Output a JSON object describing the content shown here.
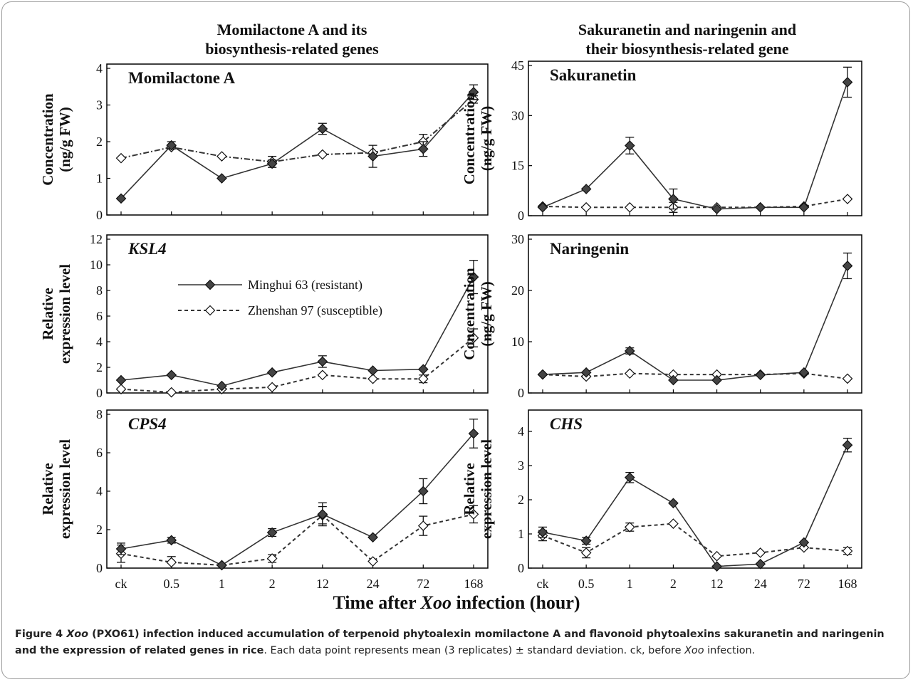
{
  "column_titles": [
    "Momilactone A and its\nbiosynthesis-related genes",
    "Sakuranetin and naringenin and\ntheir biosynthesis-related gene"
  ],
  "x_axis_label_prefix": "Time after ",
  "x_axis_label_italic": "Xoo",
  "x_axis_label_suffix": " infection (hour)",
  "caption": {
    "lead_bold_1": "Figure 4 ",
    "lead_italic": "Xoo",
    "lead_bold_2": " (PXO61) infection induced accumulation of terpenoid phytoalexin momilactone A and flavonoid phytoalexins sakuranetin and naringenin and the expression of related genes in rice",
    "rest": ". Each data point represents mean (3 replicates) ± standard deviation. ck, before ",
    "rest_italic": "Xoo",
    "rest_end": " infection."
  },
  "colors": {
    "series": "#333333",
    "marker": "#444444",
    "axis": "#000000"
  },
  "chart_data": [
    {
      "type": "line",
      "title": "Momilactone A",
      "title_italic": false,
      "ylabel": "Concentration\n(ng/g FW)",
      "categories": [
        "ck",
        "0.5",
        "1",
        "2",
        "12",
        "24",
        "72",
        "168"
      ],
      "yticks": [
        0,
        1,
        2,
        3,
        4
      ],
      "ylim": [
        0,
        4
      ],
      "xtick_labels": false,
      "series": [
        {
          "name": "Minghui 63 (resistant)",
          "values": [
            0.45,
            1.9,
            1.0,
            1.4,
            2.35,
            1.6,
            1.8,
            3.35
          ],
          "err": [
            0,
            0.1,
            0,
            0.1,
            0.15,
            0.3,
            0.2,
            0.2
          ],
          "style": "solid",
          "filled": true
        },
        {
          "name": "Zhenshan 97 (susceptible)",
          "values": [
            1.55,
            1.85,
            1.6,
            1.45,
            1.65,
            1.7,
            2.0,
            3.15
          ],
          "err": [
            0,
            0,
            0,
            0.15,
            0,
            0,
            0.2,
            0.1
          ],
          "style": "dashdot",
          "filled": false
        }
      ]
    },
    {
      "type": "line",
      "title": "Sakuranetin",
      "title_italic": false,
      "ylabel": "Concentration\n(ng/g FW)",
      "categories": [
        "ck",
        "0.5",
        "1",
        "2",
        "12",
        "24",
        "72",
        "168"
      ],
      "yticks": [
        0,
        15,
        30,
        45
      ],
      "ylim": [
        0,
        45
      ],
      "xtick_labels": false,
      "series": [
        {
          "name": "Minghui 63 (resistant)",
          "values": [
            2.5,
            8,
            21,
            5,
            2,
            2.5,
            2.5,
            40
          ],
          "err": [
            0,
            0,
            2.5,
            3,
            0,
            0,
            0,
            4.5
          ],
          "style": "solid",
          "filled": true
        },
        {
          "name": "Zhenshan 97 (susceptible)",
          "values": [
            2.8,
            2.5,
            2.5,
            2.5,
            2.5,
            2.5,
            2.8,
            5
          ],
          "err": [
            0,
            0,
            0,
            1.5,
            0,
            0,
            0,
            0
          ],
          "style": "dashed",
          "filled": false
        }
      ]
    },
    {
      "type": "line",
      "title": "KSL4",
      "title_italic": true,
      "ylabel": "Relative\nexpression level",
      "categories": [
        "ck",
        "0.5",
        "1",
        "2",
        "12",
        "24",
        "72",
        "168"
      ],
      "yticks": [
        0,
        2,
        4,
        6,
        8,
        10,
        12
      ],
      "ylim": [
        0,
        12
      ],
      "xtick_labels": false,
      "series": [
        {
          "name": "Minghui 63 (resistant)",
          "values": [
            1.0,
            1.4,
            0.55,
            1.6,
            2.45,
            1.75,
            1.85,
            9.05
          ],
          "err": [
            0,
            0,
            0,
            0,
            0.45,
            0,
            0,
            1.3
          ],
          "style": "solid",
          "filled": true
        },
        {
          "name": "Zhenshan 97 (susceptible)",
          "values": [
            0.3,
            0.05,
            0.3,
            0.45,
            1.4,
            1.1,
            1.1,
            4.3
          ],
          "err": [
            0,
            0,
            0,
            0,
            0,
            0,
            0.3,
            0.7
          ],
          "style": "dashed",
          "filled": false
        }
      ],
      "legend": [
        {
          "label": "Minghui 63 (resistant)",
          "style": "solid",
          "filled": true
        },
        {
          "label": "Zhenshan 97 (susceptible)",
          "style": "dashed",
          "filled": false
        }
      ]
    },
    {
      "type": "line",
      "title": "Naringenin",
      "title_italic": false,
      "ylabel": "Concentration\n(ng/g FW)",
      "categories": [
        "ck",
        "0.5",
        "1",
        "2",
        "12",
        "24",
        "72",
        "168"
      ],
      "yticks": [
        0,
        10,
        20,
        30
      ],
      "ylim": [
        0,
        30
      ],
      "xtick_labels": false,
      "series": [
        {
          "name": "Minghui 63 (resistant)",
          "values": [
            3.6,
            4.0,
            8.2,
            2.5,
            2.5,
            3.5,
            4.0,
            24.8
          ],
          "err": [
            0,
            0,
            0.6,
            0,
            0,
            0,
            0,
            2.5
          ],
          "style": "solid",
          "filled": true
        },
        {
          "name": "Zhenshan 97 (susceptible)",
          "values": [
            3.6,
            3.2,
            3.8,
            3.6,
            3.6,
            3.6,
            3.8,
            2.8
          ],
          "err": [
            0,
            0,
            0,
            0,
            0,
            0,
            0,
            0
          ],
          "style": "dashed",
          "filled": false
        }
      ]
    },
    {
      "type": "line",
      "title": "CPS4",
      "title_italic": true,
      "ylabel": "Relative\nexpression level",
      "categories": [
        "ck",
        "0.5",
        "1",
        "2",
        "12",
        "24",
        "72",
        "168"
      ],
      "yticks": [
        0,
        2,
        4,
        6,
        8
      ],
      "ylim": [
        0,
        8
      ],
      "xtick_labels": true,
      "series": [
        {
          "name": "Minghui 63 (resistant)",
          "values": [
            1.0,
            1.45,
            0.15,
            1.85,
            2.8,
            1.6,
            4.0,
            7.0
          ],
          "err": [
            0.3,
            0.15,
            0,
            0.2,
            0.6,
            0,
            0.65,
            0.75
          ],
          "style": "solid",
          "filled": true
        },
        {
          "name": "Zhenshan 97 (susceptible)",
          "values": [
            0.75,
            0.3,
            0.15,
            0.5,
            2.75,
            0.35,
            2.2,
            2.8
          ],
          "err": [
            0.45,
            0.3,
            0,
            0.2,
            0.45,
            0,
            0.5,
            0.45
          ],
          "style": "dashed",
          "filled": false
        }
      ]
    },
    {
      "type": "line",
      "title": "CHS",
      "title_italic": true,
      "ylabel": "Relative\nexpression level",
      "categories": [
        "ck",
        "0.5",
        "1",
        "2",
        "12",
        "24",
        "72",
        "168"
      ],
      "yticks": [
        0,
        1,
        2,
        3,
        4
      ],
      "ylim": [
        0,
        4.5
      ],
      "xtick_labels": true,
      "series": [
        {
          "name": "Minghui 63 (resistant)",
          "values": [
            1.05,
            0.8,
            2.65,
            1.9,
            0.05,
            0.12,
            0.75,
            3.6
          ],
          "err": [
            0.15,
            0.1,
            0.15,
            0,
            0,
            0,
            0,
            0.2
          ],
          "style": "solid",
          "filled": true
        },
        {
          "name": "Zhenshan 97 (susceptible)",
          "values": [
            0.95,
            0.45,
            1.2,
            1.3,
            0.35,
            0.45,
            0.6,
            0.5
          ],
          "err": [
            0.15,
            0.15,
            0.12,
            0,
            0,
            0,
            0,
            0.1
          ],
          "style": "dashed",
          "filled": false
        }
      ]
    }
  ]
}
